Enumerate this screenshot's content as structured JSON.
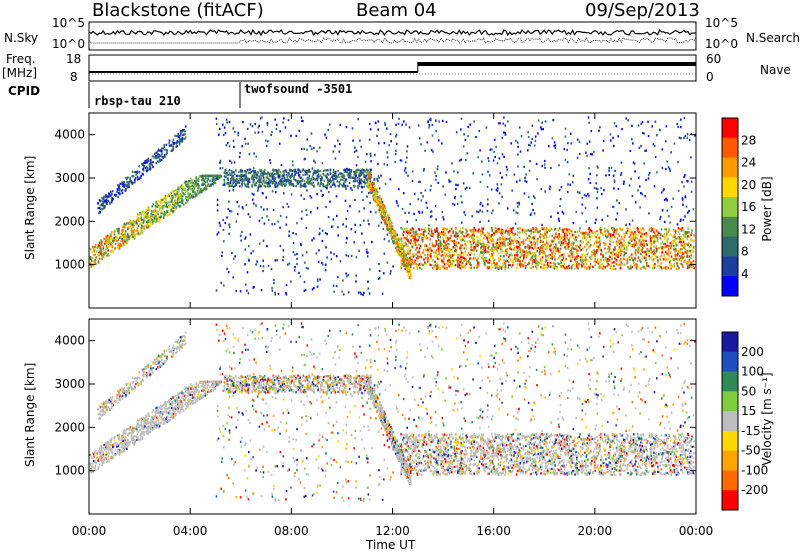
{
  "header": {
    "station": "Blackstone (fitACF)",
    "beam": "Beam 04",
    "date": "09/Sep/2013"
  },
  "left_labels": {
    "nsky": "N.Sky",
    "freq": "Freq.",
    "freq_unit": "[MHz]",
    "cpid": "CPID"
  },
  "right_labels": {
    "nsearch": "N.Search",
    "nave": "Nave"
  },
  "noise_ticks_left": [
    "10^5",
    "10^0"
  ],
  "noise_ticks_right": [
    "10^5",
    "10^0"
  ],
  "freq_ticks": [
    "18",
    "8"
  ],
  "nave_ticks": [
    "60",
    "0"
  ],
  "cpid_segments": [
    {
      "label": "rbsp-tau 210",
      "start_hour": 0
    },
    {
      "label": "twofsound -3501",
      "start_hour": 6
    }
  ],
  "colors": {
    "power": [
      "#0000ff",
      "#1f3f9f",
      "#2e6b6b",
      "#4a8a4a",
      "#8fcc3f",
      "#ffd800",
      "#ff9a00",
      "#ff5a00",
      "#ff0000"
    ],
    "velocity": [
      "#ff0000",
      "#ff6a00",
      "#ffa500",
      "#ffd800",
      "#bdbdbd",
      "#7fcc3f",
      "#2e8b57",
      "#1f4fbf",
      "#1a1aa0"
    ]
  },
  "chart_data": [
    {
      "type": "heatmap",
      "name": "power",
      "ylabel": "Slant Range [km]",
      "yticks": [
        "1000",
        "2000",
        "3000",
        "4000"
      ],
      "ylim": [
        0,
        4500
      ],
      "colorbar_label": "Power [dB]",
      "colorbar_ticks": [
        "4",
        "8",
        "12",
        "16",
        "20",
        "24",
        "28"
      ],
      "colorbar_range": [
        0,
        32
      ],
      "bands": [
        {
          "t0": 0.0,
          "t1": 5.2,
          "r0": 800,
          "r1": 3000,
          "note": ""
        },
        {
          "t0": 5.5,
          "t1": 11.0,
          "r0": 2900,
          "r1": 3100
        },
        {
          "t0": 11.0,
          "t1": 12.5,
          "r0": 800,
          "r1": 3000
        },
        {
          "t0": 12.5,
          "t1": 24.0,
          "r0": 900,
          "r1": 1800
        }
      ]
    },
    {
      "type": "heatmap",
      "name": "velocity",
      "ylabel": "Slant Range [km]",
      "yticks": [
        "1000",
        "2000",
        "3000",
        "4000"
      ],
      "ylim": [
        0,
        4500
      ],
      "colorbar_label": "Velocity [m s⁻¹]",
      "colorbar_ticks": [
        "200",
        "100",
        "50",
        "15",
        "-15",
        "-50",
        "-100",
        "-200"
      ],
      "colorbar_range": [
        -250,
        250
      ]
    },
    {
      "type": "line",
      "name": "time-axis",
      "xlabel": "Time UT",
      "xticks": [
        "00:00",
        "04:00",
        "08:00",
        "12:00",
        "16:00",
        "20:00",
        "00:00"
      ],
      "xlim": [
        0,
        24
      ]
    }
  ]
}
